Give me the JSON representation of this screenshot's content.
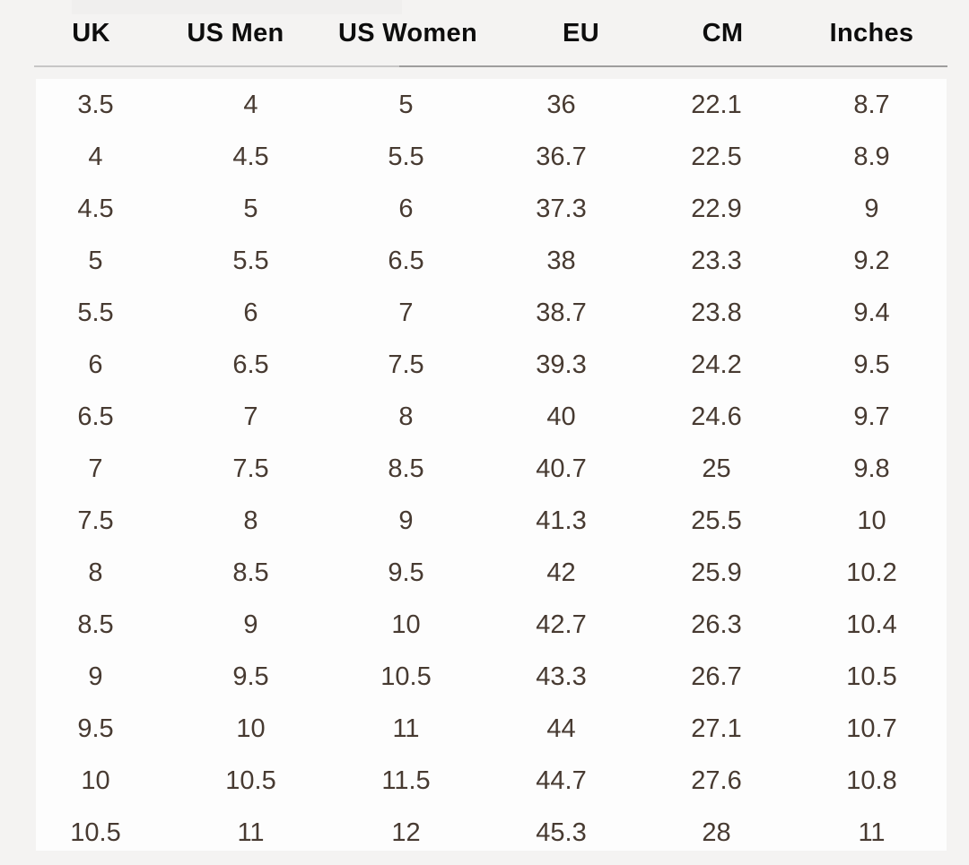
{
  "colors": {
    "page_background": "#f4f3f2",
    "top_patch": "#f0efee",
    "table_background": "#fdfdfd",
    "header_text": "#0d0d0d",
    "body_text": "#473a31",
    "divider_light": "#c7c6c6",
    "divider_dark": "#9e9d9d"
  },
  "chart_data": {
    "type": "table",
    "columns": [
      "UK",
      "US Men",
      "US Women",
      "EU",
      "CM",
      "Inches"
    ],
    "rows": [
      [
        "3.5",
        "4",
        "5",
        "36",
        "22.1",
        "8.7"
      ],
      [
        "4",
        "4.5",
        "5.5",
        "36.7",
        "22.5",
        "8.9"
      ],
      [
        "4.5",
        "5",
        "6",
        "37.3",
        "22.9",
        "9"
      ],
      [
        "5",
        "5.5",
        "6.5",
        "38",
        "23.3",
        "9.2"
      ],
      [
        "5.5",
        "6",
        "7",
        "38.7",
        "23.8",
        "9.4"
      ],
      [
        "6",
        "6.5",
        "7.5",
        "39.3",
        "24.2",
        "9.5"
      ],
      [
        "6.5",
        "7",
        "8",
        "40",
        "24.6",
        "9.7"
      ],
      [
        "7",
        "7.5",
        "8.5",
        "40.7",
        "25",
        "9.8"
      ],
      [
        "7.5",
        "8",
        "9",
        "41.3",
        "25.5",
        "10"
      ],
      [
        "8",
        "8.5",
        "9.5",
        "42",
        "25.9",
        "10.2"
      ],
      [
        "8.5",
        "9",
        "10",
        "42.7",
        "26.3",
        "10.4"
      ],
      [
        "9",
        "9.5",
        "10.5",
        "43.3",
        "26.7",
        "10.5"
      ],
      [
        "9.5",
        "10",
        "11",
        "44",
        "27.1",
        "10.7"
      ],
      [
        "10",
        "10.5",
        "11.5",
        "44.7",
        "27.6",
        "10.8"
      ],
      [
        "10.5",
        "11",
        "12",
        "45.3",
        "28",
        "11"
      ]
    ]
  }
}
